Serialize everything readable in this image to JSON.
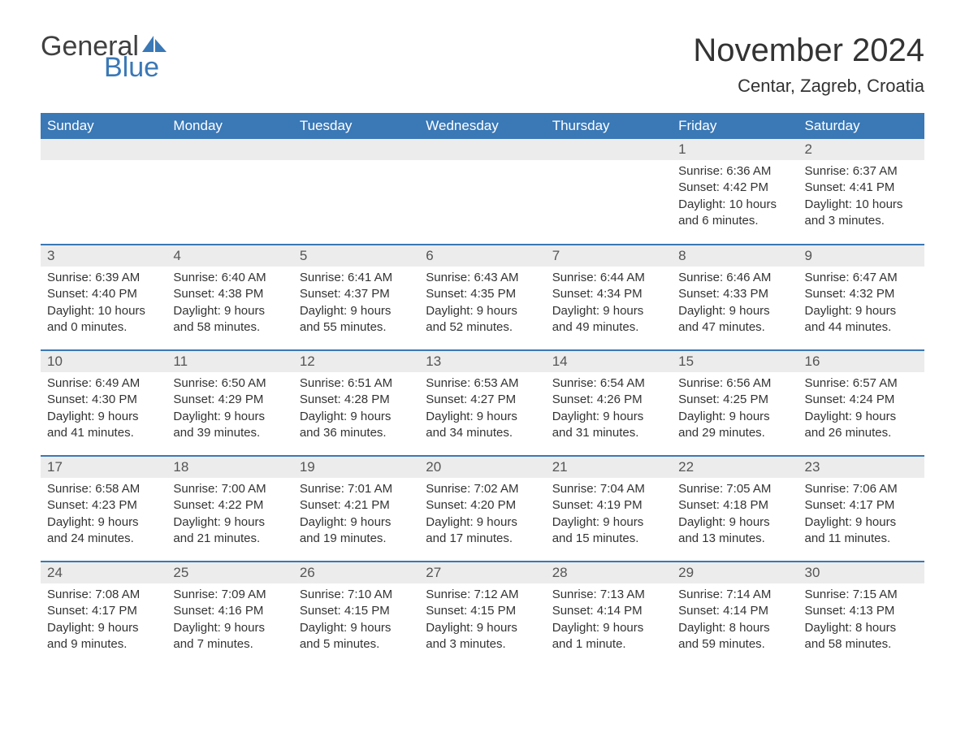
{
  "logo": {
    "word1": "General",
    "word2": "Blue",
    "text_color": "#404040",
    "accent_color": "#3a78b6"
  },
  "title": "November 2024",
  "location": "Centar, Zagreb, Croatia",
  "colors": {
    "header_bg": "#3a78b6",
    "header_text": "#ffffff",
    "daynum_bg": "#ececec",
    "body_text": "#333333",
    "row_border": "#3a78b6"
  },
  "day_headers": [
    "Sunday",
    "Monday",
    "Tuesday",
    "Wednesday",
    "Thursday",
    "Friday",
    "Saturday"
  ],
  "weeks": [
    [
      {
        "blank": true
      },
      {
        "blank": true
      },
      {
        "blank": true
      },
      {
        "blank": true
      },
      {
        "blank": true
      },
      {
        "n": "1",
        "sunrise": "Sunrise: 6:36 AM",
        "sunset": "Sunset: 4:42 PM",
        "d1": "Daylight: 10 hours",
        "d2": "and 6 minutes."
      },
      {
        "n": "2",
        "sunrise": "Sunrise: 6:37 AM",
        "sunset": "Sunset: 4:41 PM",
        "d1": "Daylight: 10 hours",
        "d2": "and 3 minutes."
      }
    ],
    [
      {
        "n": "3",
        "sunrise": "Sunrise: 6:39 AM",
        "sunset": "Sunset: 4:40 PM",
        "d1": "Daylight: 10 hours",
        "d2": "and 0 minutes."
      },
      {
        "n": "4",
        "sunrise": "Sunrise: 6:40 AM",
        "sunset": "Sunset: 4:38 PM",
        "d1": "Daylight: 9 hours",
        "d2": "and 58 minutes."
      },
      {
        "n": "5",
        "sunrise": "Sunrise: 6:41 AM",
        "sunset": "Sunset: 4:37 PM",
        "d1": "Daylight: 9 hours",
        "d2": "and 55 minutes."
      },
      {
        "n": "6",
        "sunrise": "Sunrise: 6:43 AM",
        "sunset": "Sunset: 4:35 PM",
        "d1": "Daylight: 9 hours",
        "d2": "and 52 minutes."
      },
      {
        "n": "7",
        "sunrise": "Sunrise: 6:44 AM",
        "sunset": "Sunset: 4:34 PM",
        "d1": "Daylight: 9 hours",
        "d2": "and 49 minutes."
      },
      {
        "n": "8",
        "sunrise": "Sunrise: 6:46 AM",
        "sunset": "Sunset: 4:33 PM",
        "d1": "Daylight: 9 hours",
        "d2": "and 47 minutes."
      },
      {
        "n": "9",
        "sunrise": "Sunrise: 6:47 AM",
        "sunset": "Sunset: 4:32 PM",
        "d1": "Daylight: 9 hours",
        "d2": "and 44 minutes."
      }
    ],
    [
      {
        "n": "10",
        "sunrise": "Sunrise: 6:49 AM",
        "sunset": "Sunset: 4:30 PM",
        "d1": "Daylight: 9 hours",
        "d2": "and 41 minutes."
      },
      {
        "n": "11",
        "sunrise": "Sunrise: 6:50 AM",
        "sunset": "Sunset: 4:29 PM",
        "d1": "Daylight: 9 hours",
        "d2": "and 39 minutes."
      },
      {
        "n": "12",
        "sunrise": "Sunrise: 6:51 AM",
        "sunset": "Sunset: 4:28 PM",
        "d1": "Daylight: 9 hours",
        "d2": "and 36 minutes."
      },
      {
        "n": "13",
        "sunrise": "Sunrise: 6:53 AM",
        "sunset": "Sunset: 4:27 PM",
        "d1": "Daylight: 9 hours",
        "d2": "and 34 minutes."
      },
      {
        "n": "14",
        "sunrise": "Sunrise: 6:54 AM",
        "sunset": "Sunset: 4:26 PM",
        "d1": "Daylight: 9 hours",
        "d2": "and 31 minutes."
      },
      {
        "n": "15",
        "sunrise": "Sunrise: 6:56 AM",
        "sunset": "Sunset: 4:25 PM",
        "d1": "Daylight: 9 hours",
        "d2": "and 29 minutes."
      },
      {
        "n": "16",
        "sunrise": "Sunrise: 6:57 AM",
        "sunset": "Sunset: 4:24 PM",
        "d1": "Daylight: 9 hours",
        "d2": "and 26 minutes."
      }
    ],
    [
      {
        "n": "17",
        "sunrise": "Sunrise: 6:58 AM",
        "sunset": "Sunset: 4:23 PM",
        "d1": "Daylight: 9 hours",
        "d2": "and 24 minutes."
      },
      {
        "n": "18",
        "sunrise": "Sunrise: 7:00 AM",
        "sunset": "Sunset: 4:22 PM",
        "d1": "Daylight: 9 hours",
        "d2": "and 21 minutes."
      },
      {
        "n": "19",
        "sunrise": "Sunrise: 7:01 AM",
        "sunset": "Sunset: 4:21 PM",
        "d1": "Daylight: 9 hours",
        "d2": "and 19 minutes."
      },
      {
        "n": "20",
        "sunrise": "Sunrise: 7:02 AM",
        "sunset": "Sunset: 4:20 PM",
        "d1": "Daylight: 9 hours",
        "d2": "and 17 minutes."
      },
      {
        "n": "21",
        "sunrise": "Sunrise: 7:04 AM",
        "sunset": "Sunset: 4:19 PM",
        "d1": "Daylight: 9 hours",
        "d2": "and 15 minutes."
      },
      {
        "n": "22",
        "sunrise": "Sunrise: 7:05 AM",
        "sunset": "Sunset: 4:18 PM",
        "d1": "Daylight: 9 hours",
        "d2": "and 13 minutes."
      },
      {
        "n": "23",
        "sunrise": "Sunrise: 7:06 AM",
        "sunset": "Sunset: 4:17 PM",
        "d1": "Daylight: 9 hours",
        "d2": "and 11 minutes."
      }
    ],
    [
      {
        "n": "24",
        "sunrise": "Sunrise: 7:08 AM",
        "sunset": "Sunset: 4:17 PM",
        "d1": "Daylight: 9 hours",
        "d2": "and 9 minutes."
      },
      {
        "n": "25",
        "sunrise": "Sunrise: 7:09 AM",
        "sunset": "Sunset: 4:16 PM",
        "d1": "Daylight: 9 hours",
        "d2": "and 7 minutes."
      },
      {
        "n": "26",
        "sunrise": "Sunrise: 7:10 AM",
        "sunset": "Sunset: 4:15 PM",
        "d1": "Daylight: 9 hours",
        "d2": "and 5 minutes."
      },
      {
        "n": "27",
        "sunrise": "Sunrise: 7:12 AM",
        "sunset": "Sunset: 4:15 PM",
        "d1": "Daylight: 9 hours",
        "d2": "and 3 minutes."
      },
      {
        "n": "28",
        "sunrise": "Sunrise: 7:13 AM",
        "sunset": "Sunset: 4:14 PM",
        "d1": "Daylight: 9 hours",
        "d2": "and 1 minute."
      },
      {
        "n": "29",
        "sunrise": "Sunrise: 7:14 AM",
        "sunset": "Sunset: 4:14 PM",
        "d1": "Daylight: 8 hours",
        "d2": "and 59 minutes."
      },
      {
        "n": "30",
        "sunrise": "Sunrise: 7:15 AM",
        "sunset": "Sunset: 4:13 PM",
        "d1": "Daylight: 8 hours",
        "d2": "and 58 minutes."
      }
    ]
  ]
}
